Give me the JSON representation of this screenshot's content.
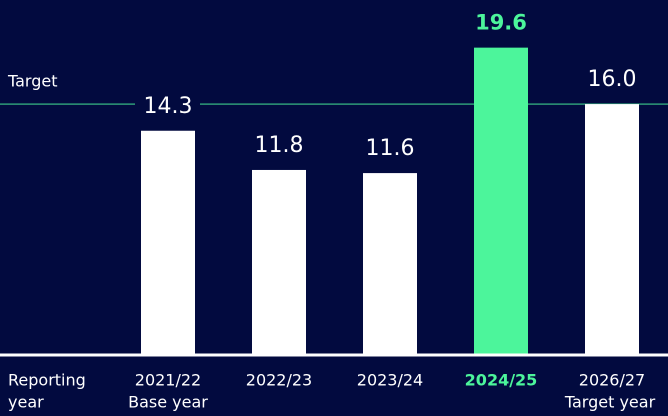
{
  "chart_data": {
    "type": "bar",
    "categories": [
      "2021/22",
      "2022/23",
      "2023/24",
      "2024/25",
      "2026/27"
    ],
    "category_sublabels": [
      "Base year",
      null,
      null,
      null,
      "Target year"
    ],
    "x_label": [
      "Reporting",
      "year"
    ],
    "values": [
      14.3,
      11.8,
      11.6,
      19.6,
      16.0
    ],
    "value_labels": [
      "14.3",
      "11.8",
      "11.6",
      "19.6",
      "16.0"
    ],
    "color": "#ffffff",
    "colors": [
      "#ffffff",
      "#ffffff",
      "#ffffff",
      "#4cf59b",
      "#ffffff"
    ],
    "ylim": [
      0,
      22
    ],
    "target": {
      "label": "Target",
      "value": 16.0,
      "color": "#2e9a78"
    }
  }
}
